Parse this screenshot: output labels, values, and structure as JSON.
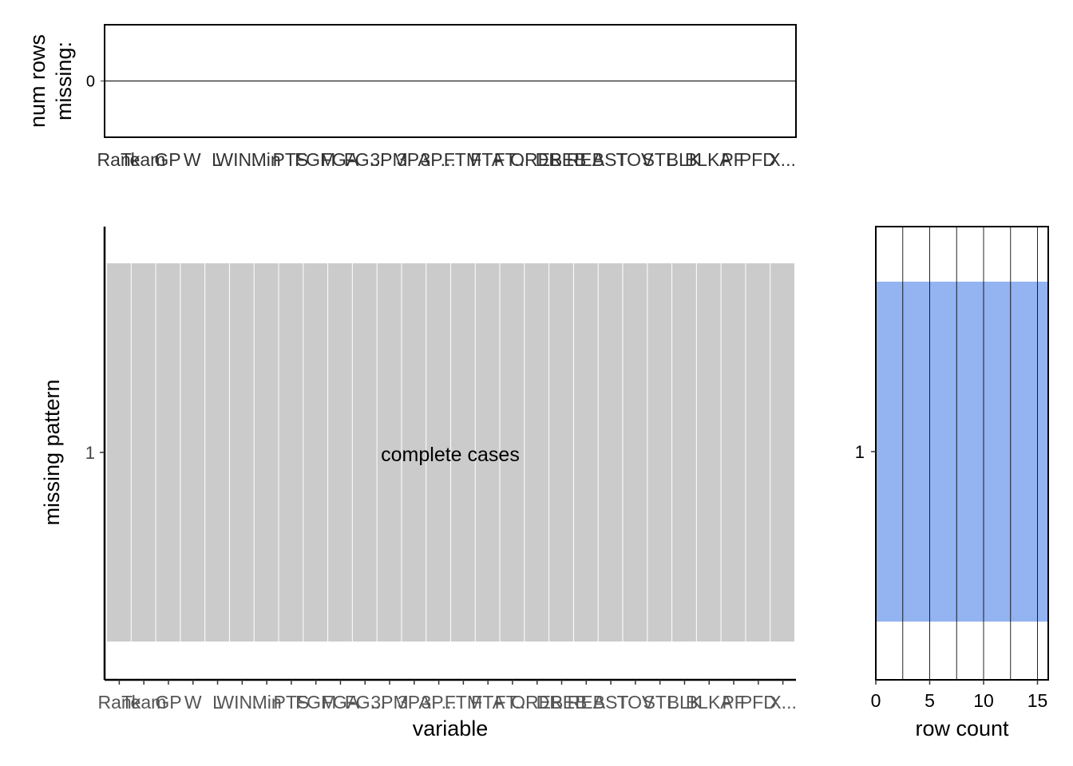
{
  "chart_data": [
    {
      "type": "bar",
      "panel": "top",
      "ylabel": "num rows\nmissing:",
      "categories": [
        "Rank",
        "Team",
        "GP",
        "W",
        "L",
        "WIN...",
        "Min",
        "PTS",
        "FGM",
        "FGA",
        "FG...",
        "3PM",
        "3PA",
        "3P...",
        "FTM",
        "FTA",
        "FT...",
        "OREB",
        "DREB",
        "REB",
        "AST",
        "TOV",
        "STL",
        "BLK",
        "BLKA",
        "PF",
        "PFD",
        "X..."
      ],
      "values": [
        0,
        0,
        0,
        0,
        0,
        0,
        0,
        0,
        0,
        0,
        0,
        0,
        0,
        0,
        0,
        0,
        0,
        0,
        0,
        0,
        0,
        0,
        0,
        0,
        0,
        0,
        0,
        0
      ],
      "yticks": [
        "0"
      ],
      "grid": false
    },
    {
      "type": "heatmap",
      "panel": "main",
      "xlabel": "variable",
      "ylabel": "missing pattern",
      "categories": [
        "Rank",
        "Team",
        "GP",
        "W",
        "L",
        "WIN...",
        "Min",
        "PTS",
        "FGM",
        "FGA",
        "FG...",
        "3PM",
        "3PA",
        "3P...",
        "FTM",
        "FTA",
        "FT...",
        "OREB",
        "DREB",
        "REB",
        "AST",
        "TOV",
        "STL",
        "BLK",
        "BLKA",
        "PF",
        "PFD",
        "X..."
      ],
      "rows": [
        {
          "pattern": "1",
          "missing": [
            false,
            false,
            false,
            false,
            false,
            false,
            false,
            false,
            false,
            false,
            false,
            false,
            false,
            false,
            false,
            false,
            false,
            false,
            false,
            false,
            false,
            false,
            false,
            false,
            false,
            false,
            false,
            false
          ]
        }
      ],
      "annotation": "complete cases",
      "colors": {
        "observed": "#cbcbcb",
        "missing": "#a5a5ff"
      },
      "grid": false
    },
    {
      "type": "bar",
      "panel": "right",
      "orientation": "horizontal",
      "xlabel": "row count",
      "categories": [
        "1"
      ],
      "values": [
        16
      ],
      "xlim": [
        0,
        16
      ],
      "xticks": [
        0,
        5,
        10,
        15
      ],
      "color": "#93b3f1",
      "grid": true
    }
  ]
}
